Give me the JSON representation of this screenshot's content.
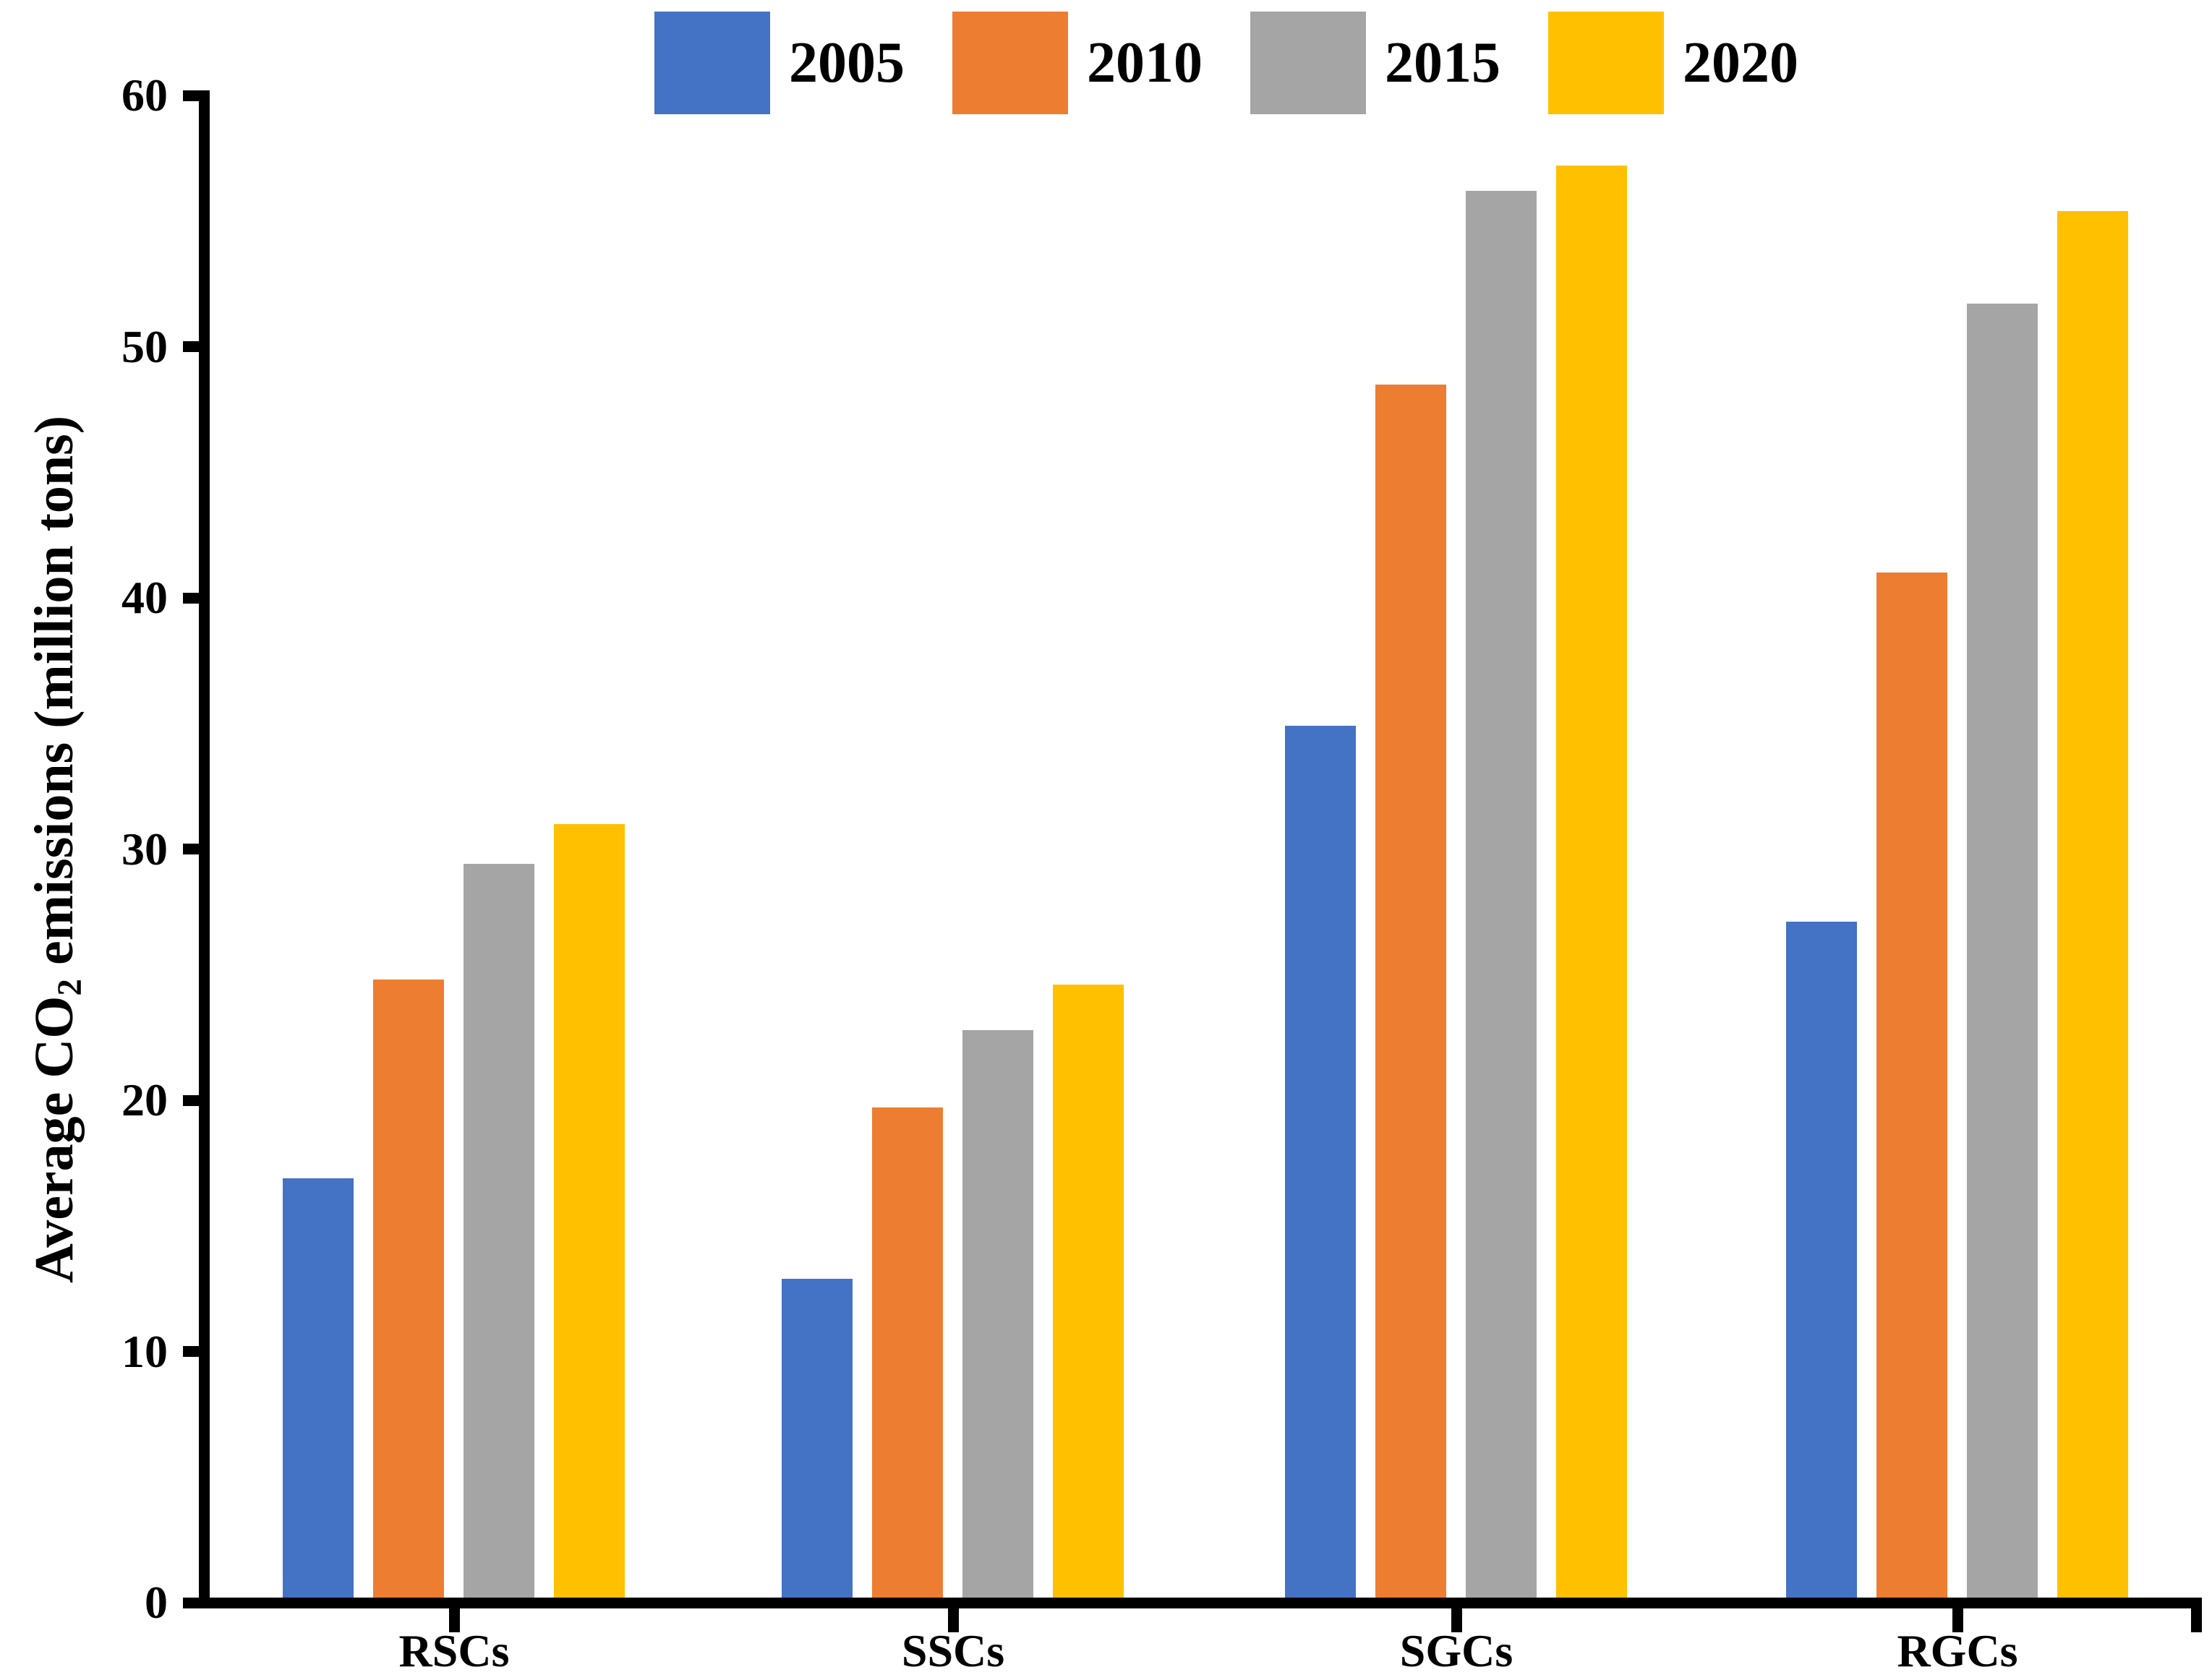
{
  "chart_data": {
    "type": "bar",
    "title": "",
    "categories": [
      "RSCs",
      "SSCs",
      "SGCs",
      "RGCs"
    ],
    "series": [
      {
        "name": "2005",
        "color": "#4472C4",
        "values": [
          16.9,
          12.9,
          34.9,
          27.1
        ]
      },
      {
        "name": "2010",
        "color": "#ED7D31",
        "values": [
          24.8,
          19.7,
          48.5,
          41.0
        ]
      },
      {
        "name": "2015",
        "color": "#A5A5A5",
        "values": [
          29.4,
          22.8,
          56.2,
          51.7
        ]
      },
      {
        "name": "2020",
        "color": "#FFC000",
        "values": [
          31.0,
          24.6,
          57.2,
          55.4
        ]
      }
    ],
    "ylabel_parts": {
      "prefix": "Average CO",
      "sub": "2",
      "suffix": " emissions (million tons)"
    },
    "ylabel_plain": "Average CO2 emissions (million tons)",
    "xlabel": "",
    "ylim": [
      0,
      60
    ],
    "yticks": [
      0,
      10,
      20,
      30,
      40,
      50,
      60
    ],
    "legend_position": "top",
    "legend_labels": [
      "2005",
      "2010",
      "2015",
      "2020"
    ],
    "grid": false,
    "axis_color": "#000000",
    "background_color": "#FFFFFF"
  }
}
